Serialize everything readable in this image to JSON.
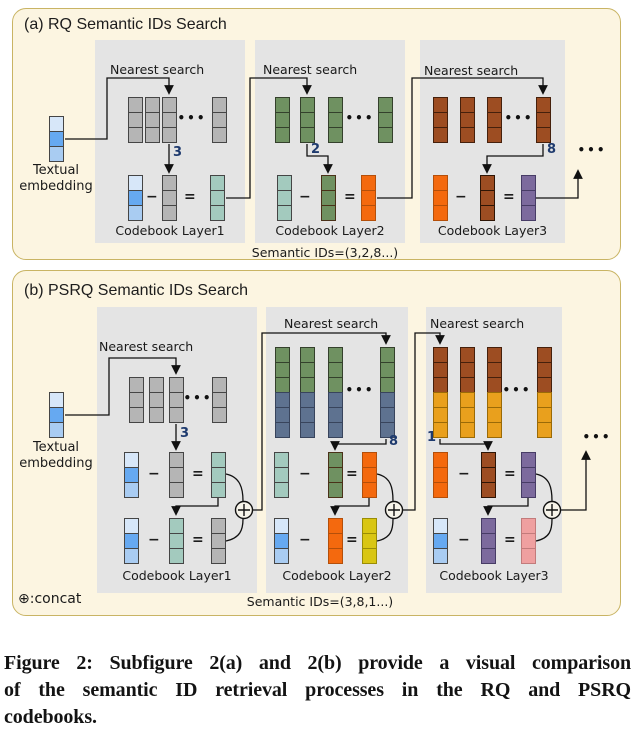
{
  "glyphs": {
    "dots": "•••",
    "minus": "−",
    "equals": "="
  },
  "colors": {
    "panel_background": "#fcf5e1",
    "panel_border": "#c9b464",
    "codebook_panel": "#e4e4e4",
    "embedding_blue": [
      "#d7e7f9",
      "#66a9f1",
      "#a9ccf2"
    ],
    "codebook1_gray": "#b5b5b5",
    "residual1_teal": "#a3cabe",
    "codebook2_green": "#6f9161",
    "codebook2_slate": "#5e7290",
    "residual2_orange": "#f4690e",
    "residual2_yellow": "#d9c613",
    "codebook3_brown": "#9d4d22",
    "codebook3_gold": "#e9a01d",
    "residual3_purple": "#7c6a9d",
    "residual3_pink": "#efa0a0",
    "id_label": "#1e3a6e",
    "line": "#111111"
  },
  "panel_a": {
    "title": "(a) RQ Semantic IDs Search",
    "embedding_label_line1": "Textual",
    "embedding_label_line2": "embedding",
    "semantic_ids": "Semantic IDs=(3,2,8...)",
    "layers": [
      {
        "label": "Codebook Layer1",
        "nearest": "Nearest search",
        "id": "3"
      },
      {
        "label": "Codebook Layer2",
        "nearest": "Nearest search",
        "id": "2"
      },
      {
        "label": "Codebook Layer3",
        "nearest": "Nearest search",
        "id": "8"
      }
    ]
  },
  "panel_b": {
    "title": "(b) PSRQ Semantic IDs Search",
    "embedding_label_line1": "Textual",
    "embedding_label_line2": "embedding",
    "semantic_ids": "Semantic IDs=(3,8,1...)",
    "concat_legend": "⊕:concat",
    "layers": [
      {
        "label": "Codebook Layer1",
        "nearest": "Nearest search",
        "id": "3"
      },
      {
        "label": "Codebook Layer2",
        "nearest": "Nearest search",
        "id": "8"
      },
      {
        "label": "Codebook Layer3",
        "nearest": "Nearest search",
        "id": "1"
      }
    ]
  },
  "caption": {
    "lines": [
      "Figure 2: Subfigure 2(a) and 2(b) provide a visual comparison",
      "of the semantic ID retrieval processes in the RQ and PSRQ",
      "codebooks."
    ]
  }
}
